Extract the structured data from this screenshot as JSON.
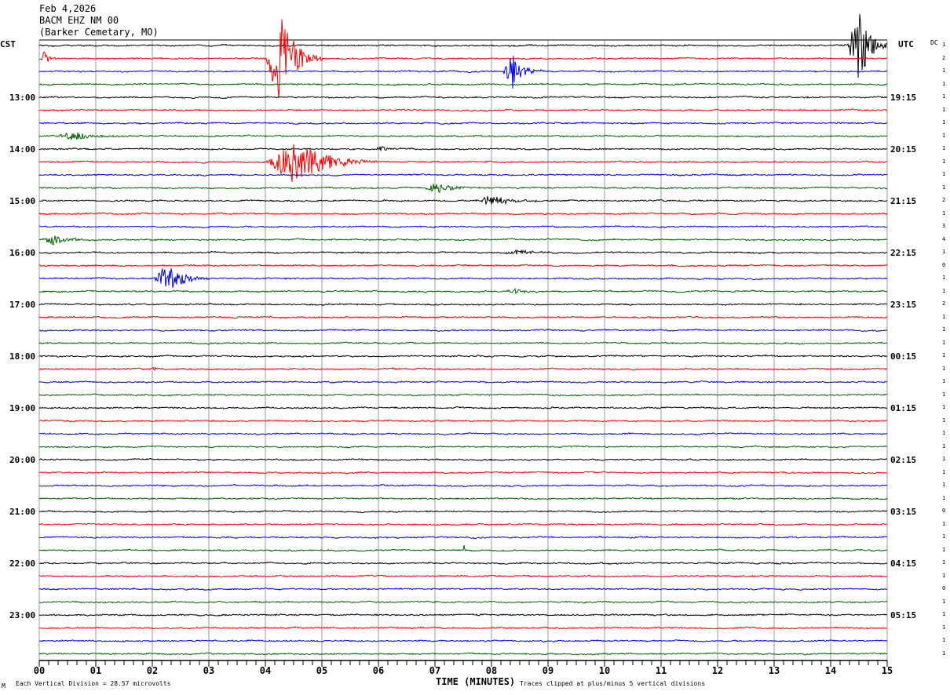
{
  "header": {
    "date": "Feb 4,2026",
    "station": "BACM EHZ NM 00",
    "location": "(Barker Cemetary, MO)"
  },
  "left_zone": "CST",
  "right_zone": "UTC",
  "dc_label": "DC",
  "footer": {
    "scale_mark": "M",
    "scale_text": "Each Vertical Division =   28.57 microvolts",
    "xlabel": "TIME (MINUTES)",
    "clip_text": "Traces clipped at plus/minus 5 vertical divisions"
  },
  "chart_data": {
    "type": "line",
    "title": "BACM EHZ NM 00 helicorder",
    "xlabel": "TIME (MINUTES)",
    "xlim": [
      0,
      15
    ],
    "x_ticks": [
      "00",
      "01",
      "02",
      "03",
      "04",
      "05",
      "06",
      "07",
      "08",
      "09",
      "10",
      "11",
      "12",
      "13",
      "14",
      "15"
    ],
    "trace_count": 48,
    "trace_minutes": 15,
    "colors": [
      "#000000",
      "#ff0000",
      "#0000ff",
      "#006400"
    ],
    "left_hour_labels": [
      {
        "trace": 4,
        "label": "13:00"
      },
      {
        "trace": 8,
        "label": "14:00"
      },
      {
        "trace": 12,
        "label": "15:00"
      },
      {
        "trace": 16,
        "label": "16:00"
      },
      {
        "trace": 20,
        "label": "17:00"
      },
      {
        "trace": 24,
        "label": "18:00"
      },
      {
        "trace": 28,
        "label": "19:00"
      },
      {
        "trace": 32,
        "label": "20:00"
      },
      {
        "trace": 36,
        "label": "21:00"
      },
      {
        "trace": 40,
        "label": "22:00"
      },
      {
        "trace": 44,
        "label": "23:00"
      }
    ],
    "right_hour_labels": [
      {
        "trace": 4,
        "label": "19:15"
      },
      {
        "trace": 8,
        "label": "20:15"
      },
      {
        "trace": 12,
        "label": "21:15"
      },
      {
        "trace": 16,
        "label": "22:15"
      },
      {
        "trace": 20,
        "label": "23:15"
      },
      {
        "trace": 24,
        "label": "00:15"
      },
      {
        "trace": 28,
        "label": "01:15"
      },
      {
        "trace": 32,
        "label": "02:15"
      },
      {
        "trace": 36,
        "label": "03:15"
      },
      {
        "trace": 40,
        "label": "04:15"
      },
      {
        "trace": 44,
        "label": "05:15"
      }
    ],
    "dc_offsets": [
      1,
      2,
      1,
      1,
      1,
      1,
      1,
      1,
      1,
      1,
      1,
      1,
      2,
      1,
      3,
      4,
      1,
      0,
      1,
      1,
      2,
      1,
      1,
      1,
      1,
      1,
      1,
      1,
      1,
      1,
      1,
      1,
      1,
      1,
      1,
      1,
      0,
      1,
      1,
      1,
      1,
      1,
      0,
      1,
      1,
      1,
      1,
      1
    ],
    "events": [
      {
        "trace": 0,
        "start": 14.3,
        "end": 15.0,
        "amplitude": 60
      },
      {
        "trace": 1,
        "start": 0.0,
        "end": 0.3,
        "amplitude": 12
      },
      {
        "trace": 1,
        "start": 4.0,
        "end": 5.0,
        "amplitude": 60
      },
      {
        "trace": 2,
        "start": 8.2,
        "end": 8.9,
        "amplitude": 22
      },
      {
        "trace": 7,
        "start": 0.3,
        "end": 1.6,
        "amplitude": 6
      },
      {
        "trace": 8,
        "start": 5.9,
        "end": 6.5,
        "amplitude": 3
      },
      {
        "trace": 9,
        "start": 4.0,
        "end": 6.0,
        "amplitude": 30
      },
      {
        "trace": 11,
        "start": 6.8,
        "end": 7.8,
        "amplitude": 7
      },
      {
        "trace": 12,
        "start": 7.7,
        "end": 8.9,
        "amplitude": 8
      },
      {
        "trace": 15,
        "start": 0.0,
        "end": 1.0,
        "amplitude": 6
      },
      {
        "trace": 16,
        "start": 8.1,
        "end": 9.5,
        "amplitude": 3
      },
      {
        "trace": 18,
        "start": 2.0,
        "end": 3.0,
        "amplitude": 22
      },
      {
        "trace": 19,
        "start": 8.2,
        "end": 9.0,
        "amplitude": 3
      },
      {
        "trace": 25,
        "start": 1.9,
        "end": 2.4,
        "amplitude": 3
      },
      {
        "trace": 39,
        "start": 7.5,
        "end": 7.56,
        "amplitude": 8
      }
    ]
  }
}
